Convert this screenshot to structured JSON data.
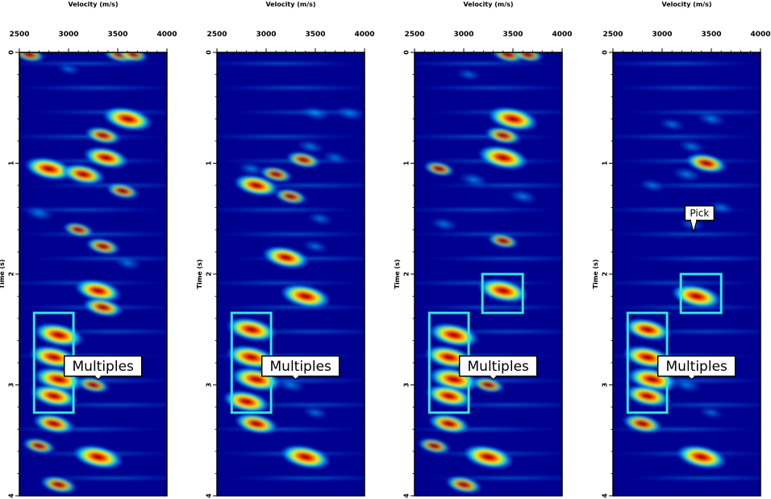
{
  "chart_data": [
    {
      "type": "heatmap",
      "title": "",
      "xlabel": "Velocity (m/s)",
      "ylabel": "Time (s)",
      "xlim": [
        2500,
        4000
      ],
      "ylim": [
        0,
        4
      ],
      "x_ticks": [
        "2500",
        "3000",
        "3500",
        "4000"
      ],
      "y_ticks": [
        "0",
        "1",
        "2",
        "3",
        "4"
      ],
      "colormap": "jet",
      "blobs": [
        {
          "v": 2600,
          "t": 0.02,
          "amp": 0.45
        },
        {
          "v": 3520,
          "t": 0.02,
          "amp": 0.5
        },
        {
          "v": 3650,
          "t": 0.02,
          "amp": 0.45
        },
        {
          "v": 3000,
          "t": 0.15,
          "amp": 0.25
        },
        {
          "v": 3600,
          "t": 0.6,
          "amp": 1.0
        },
        {
          "v": 3350,
          "t": 0.75,
          "amp": 0.6
        },
        {
          "v": 3380,
          "t": 0.95,
          "amp": 0.85
        },
        {
          "v": 2800,
          "t": 1.05,
          "amp": 0.95
        },
        {
          "v": 3150,
          "t": 1.1,
          "amp": 0.8
        },
        {
          "v": 3550,
          "t": 1.25,
          "amp": 0.5
        },
        {
          "v": 2700,
          "t": 1.45,
          "amp": 0.4
        },
        {
          "v": 3100,
          "t": 1.6,
          "amp": 0.45
        },
        {
          "v": 3350,
          "t": 1.75,
          "amp": 0.55
        },
        {
          "v": 3600,
          "t": 1.9,
          "amp": 0.35
        },
        {
          "v": 3300,
          "t": 2.15,
          "amp": 0.9
        },
        {
          "v": 3350,
          "t": 2.3,
          "amp": 0.7
        },
        {
          "v": 2900,
          "t": 2.55,
          "amp": 1.0
        },
        {
          "v": 2850,
          "t": 2.75,
          "amp": 0.95
        },
        {
          "v": 2900,
          "t": 2.95,
          "amp": 1.0
        },
        {
          "v": 2850,
          "t": 3.1,
          "amp": 0.9
        },
        {
          "v": 3250,
          "t": 3.0,
          "amp": 0.5
        },
        {
          "v": 2850,
          "t": 3.35,
          "amp": 0.75
        },
        {
          "v": 2700,
          "t": 3.55,
          "amp": 0.5
        },
        {
          "v": 3300,
          "t": 3.65,
          "amp": 1.0
        },
        {
          "v": 2900,
          "t": 3.9,
          "amp": 0.6
        }
      ],
      "boxes": [
        {
          "name": "multiples",
          "v0": 2650,
          "v1": 3050,
          "t0": 2.35,
          "t1": 3.25
        }
      ],
      "callouts": [
        {
          "text": "Multiples",
          "v": 3350,
          "t": 2.83,
          "tip_v": 3300,
          "tip_t": 2.95
        }
      ]
    },
    {
      "type": "heatmap",
      "title": "",
      "xlabel": "Velocity (m/s)",
      "ylabel": "Time (s)",
      "xlim": [
        2500,
        4000
      ],
      "ylim": [
        0,
        4
      ],
      "x_ticks": [
        "2500",
        "3000",
        "3500",
        "4000"
      ],
      "y_ticks": [
        "0",
        "1",
        "2",
        "3",
        "4"
      ],
      "colormap": "jet",
      "blobs": [
        {
          "v": 3500,
          "t": 0.55,
          "amp": 0.4
        },
        {
          "v": 3850,
          "t": 0.55,
          "amp": 0.4
        },
        {
          "v": 3450,
          "t": 0.85,
          "amp": 0.35
        },
        {
          "v": 3700,
          "t": 0.95,
          "amp": 0.3
        },
        {
          "v": 2850,
          "t": 1.05,
          "amp": 0.35
        },
        {
          "v": 3100,
          "t": 1.1,
          "amp": 0.5
        },
        {
          "v": 3380,
          "t": 0.97,
          "amp": 0.55
        },
        {
          "v": 2900,
          "t": 1.2,
          "amp": 0.85
        },
        {
          "v": 3250,
          "t": 1.3,
          "amp": 0.5
        },
        {
          "v": 3550,
          "t": 1.5,
          "amp": 0.3
        },
        {
          "v": 3200,
          "t": 1.85,
          "amp": 0.9
        },
        {
          "v": 3500,
          "t": 1.75,
          "amp": 0.3
        },
        {
          "v": 3400,
          "t": 2.2,
          "amp": 1.0
        },
        {
          "v": 2850,
          "t": 2.5,
          "amp": 1.0
        },
        {
          "v": 2850,
          "t": 2.75,
          "amp": 1.0
        },
        {
          "v": 2900,
          "t": 2.95,
          "amp": 1.0
        },
        {
          "v": 2800,
          "t": 3.15,
          "amp": 0.9
        },
        {
          "v": 3250,
          "t": 3.0,
          "amp": 0.4
        },
        {
          "v": 2900,
          "t": 3.35,
          "amp": 0.8
        },
        {
          "v": 3400,
          "t": 3.65,
          "amp": 1.0
        },
        {
          "v": 3500,
          "t": 3.25,
          "amp": 0.3
        }
      ],
      "boxes": [
        {
          "name": "multiples",
          "v0": 2650,
          "v1": 3050,
          "t0": 2.35,
          "t1": 3.25
        }
      ],
      "callouts": [
        {
          "text": "Multiples",
          "v": 3350,
          "t": 2.83,
          "tip_v": 3300,
          "tip_t": 2.95
        }
      ]
    },
    {
      "type": "heatmap",
      "title": "",
      "xlabel": "Velocity (m/s)",
      "ylabel": "Time (s)",
      "xlim": [
        2500,
        4000
      ],
      "ylim": [
        0,
        4
      ],
      "x_ticks": [
        "2500",
        "3000",
        "3500",
        "4000"
      ],
      "y_ticks": [
        "0",
        "1",
        "2",
        "3",
        "4"
      ],
      "colormap": "jet",
      "blobs": [
        {
          "v": 3450,
          "t": 0.02,
          "amp": 0.5
        },
        {
          "v": 3650,
          "t": 0.02,
          "amp": 0.45
        },
        {
          "v": 3050,
          "t": 0.2,
          "amp": 0.25
        },
        {
          "v": 3500,
          "t": 0.6,
          "amp": 1.0
        },
        {
          "v": 3400,
          "t": 0.75,
          "amp": 0.6
        },
        {
          "v": 3400,
          "t": 0.95,
          "amp": 1.0
        },
        {
          "v": 2750,
          "t": 1.05,
          "amp": 0.45
        },
        {
          "v": 3100,
          "t": 1.15,
          "amp": 0.4
        },
        {
          "v": 3600,
          "t": 1.3,
          "amp": 0.4
        },
        {
          "v": 2800,
          "t": 1.55,
          "amp": 0.35
        },
        {
          "v": 3400,
          "t": 1.7,
          "amp": 0.45
        },
        {
          "v": 3400,
          "t": 2.15,
          "amp": 1.0
        },
        {
          "v": 2900,
          "t": 2.55,
          "amp": 1.0
        },
        {
          "v": 2850,
          "t": 2.75,
          "amp": 0.95
        },
        {
          "v": 2900,
          "t": 2.95,
          "amp": 1.0
        },
        {
          "v": 2850,
          "t": 3.1,
          "amp": 0.9
        },
        {
          "v": 3250,
          "t": 3.0,
          "amp": 0.5
        },
        {
          "v": 2850,
          "t": 3.35,
          "amp": 0.75
        },
        {
          "v": 2700,
          "t": 3.55,
          "amp": 0.5
        },
        {
          "v": 3250,
          "t": 3.65,
          "amp": 1.0
        },
        {
          "v": 3000,
          "t": 3.9,
          "amp": 0.6
        }
      ],
      "boxes": [
        {
          "name": "multiples",
          "v0": 2650,
          "v1": 3050,
          "t0": 2.35,
          "t1": 3.25
        },
        {
          "name": "pick",
          "v0": 3190,
          "v1": 3600,
          "t0": 2.0,
          "t1": 2.35
        }
      ],
      "callouts": [
        {
          "text": "Multiples",
          "v": 3350,
          "t": 2.83,
          "tip_v": 3300,
          "tip_t": 2.95
        }
      ]
    },
    {
      "type": "heatmap",
      "title": "",
      "xlabel": "Velocity (m/s)",
      "ylabel": "Time (s)",
      "xlim": [
        2500,
        4000
      ],
      "ylim": [
        0,
        4
      ],
      "x_ticks": [
        "2500",
        "3000",
        "3500",
        "4000"
      ],
      "y_ticks": [
        "0",
        "1",
        "2",
        "3",
        "4"
      ],
      "colormap": "jet",
      "blobs": [
        {
          "v": 3500,
          "t": 0.6,
          "amp": 0.4
        },
        {
          "v": 3100,
          "t": 0.65,
          "amp": 0.3
        },
        {
          "v": 3300,
          "t": 0.85,
          "amp": 0.35
        },
        {
          "v": 3450,
          "t": 1.0,
          "amp": 0.75
        },
        {
          "v": 3250,
          "t": 1.1,
          "amp": 0.4
        },
        {
          "v": 2900,
          "t": 1.2,
          "amp": 0.3
        },
        {
          "v": 3600,
          "t": 1.4,
          "amp": 0.3
        },
        {
          "v": 3300,
          "t": 1.55,
          "amp": 0.3
        },
        {
          "v": 3350,
          "t": 2.2,
          "amp": 1.0
        },
        {
          "v": 2850,
          "t": 2.5,
          "amp": 0.9
        },
        {
          "v": 2850,
          "t": 2.75,
          "amp": 0.95
        },
        {
          "v": 2900,
          "t": 2.95,
          "amp": 1.0
        },
        {
          "v": 2850,
          "t": 3.1,
          "amp": 0.85
        },
        {
          "v": 3250,
          "t": 3.0,
          "amp": 0.4
        },
        {
          "v": 2800,
          "t": 3.35,
          "amp": 0.7
        },
        {
          "v": 3400,
          "t": 3.65,
          "amp": 1.0
        },
        {
          "v": 3500,
          "t": 3.25,
          "amp": 0.25
        }
      ],
      "boxes": [
        {
          "name": "multiples",
          "v0": 2650,
          "v1": 3050,
          "t0": 2.35,
          "t1": 3.25
        },
        {
          "name": "pick",
          "v0": 3190,
          "v1": 3600,
          "t0": 2.0,
          "t1": 2.35
        }
      ],
      "callouts": [
        {
          "text": "Multiples",
          "v": 3350,
          "t": 2.83,
          "tip_v": 3300,
          "tip_t": 2.95
        },
        {
          "text": "Pick",
          "v": 3380,
          "t": 1.45,
          "tip_v": 3320,
          "tip_t": 1.62
        }
      ]
    }
  ],
  "colors": {
    "background_low": "#00008f",
    "box_stroke": "#33e5e5",
    "axis": "#000000"
  }
}
